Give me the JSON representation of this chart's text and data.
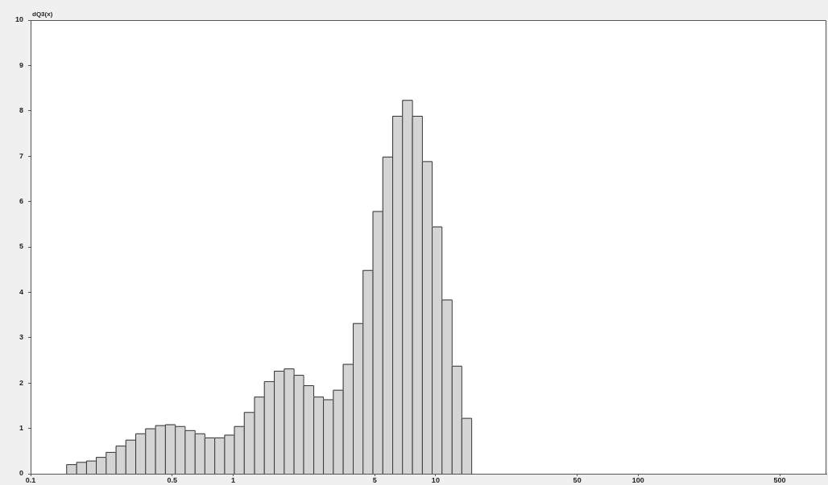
{
  "chart_data": {
    "type": "histogram",
    "ylabel": "dQ3(x)",
    "bins": [
      0.15,
      0.168,
      0.188,
      0.21,
      0.235,
      0.263,
      0.294,
      0.329,
      0.368,
      0.412,
      0.461,
      0.516,
      0.577,
      0.646,
      0.722,
      0.808,
      0.904,
      1.01,
      1.13,
      1.27,
      1.42,
      1.59,
      1.78,
      1.99,
      2.22,
      2.49,
      2.78,
      3.11,
      3.48,
      3.9,
      4.36,
      4.88,
      5.46,
      6.11,
      6.83,
      7.65,
      8.56,
      9.57,
      10.7,
      12,
      13.4,
      15
    ],
    "values": [
      0.21,
      0.26,
      0.29,
      0.37,
      0.48,
      0.62,
      0.75,
      0.89,
      1.0,
      1.07,
      1.09,
      1.05,
      0.96,
      0.89,
      0.8,
      0.8,
      0.86,
      1.05,
      1.36,
      1.7,
      2.04,
      2.27,
      2.32,
      2.18,
      1.95,
      1.7,
      1.64,
      1.85,
      2.42,
      3.32,
      4.49,
      5.79,
      6.99,
      7.89,
      8.24,
      7.89,
      6.89,
      5.45,
      3.84,
      2.38,
      1.23
    ],
    "color": "#d4d4d4",
    "log": "x",
    "xlim": [
      0.1,
      850
    ],
    "xticks": [
      0.1,
      0.5,
      1,
      5,
      10,
      50,
      100,
      500
    ],
    "ylim": [
      0,
      10
    ],
    "yticks": [
      0,
      1,
      2,
      3,
      4,
      5,
      6,
      7,
      8,
      9,
      10
    ]
  }
}
